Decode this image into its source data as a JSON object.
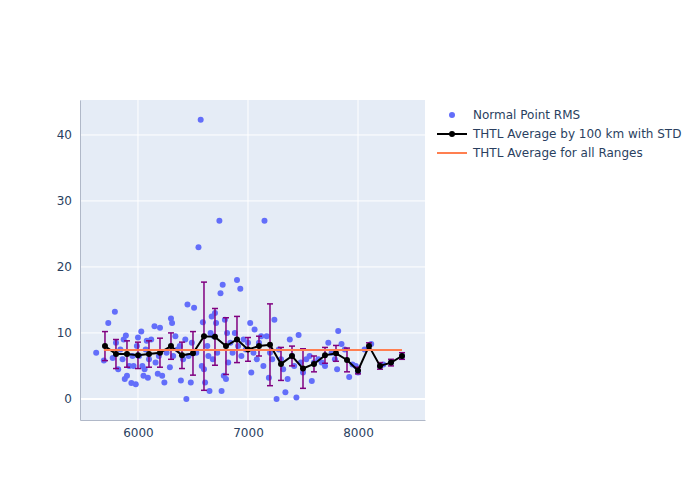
{
  "chart_data": {
    "type": "scatter",
    "xlim": [
      5473,
      8609
    ],
    "xticks": [
      6000,
      7000,
      8000
    ],
    "ylim": [
      -3.2,
      45.3
    ],
    "yticks": [
      0,
      10,
      20,
      30,
      40
    ],
    "grid": true,
    "legend": "right",
    "series": [
      {
        "name": "Normal Point RMS",
        "type": "scatter",
        "color": "#636efa",
        "marker": "circle",
        "x": [
          5620,
          5690,
          5730,
          5770,
          5790,
          5800,
          5820,
          5840,
          5860,
          5870,
          5880,
          5890,
          5900,
          5920,
          5940,
          5950,
          5960,
          5980,
          5990,
          6000,
          6010,
          6030,
          6040,
          6050,
          6060,
          6070,
          6080,
          6090,
          6100,
          6120,
          6150,
          6160,
          6180,
          6190,
          6200,
          6220,
          6240,
          6260,
          6290,
          6300,
          6310,
          6320,
          6340,
          6360,
          6380,
          6390,
          6410,
          6430,
          6440,
          6450,
          6460,
          6480,
          6490,
          6510,
          6530,
          6550,
          6570,
          6580,
          6590,
          6600,
          6610,
          6630,
          6640,
          6650,
          6660,
          6670,
          6680,
          6690,
          6700,
          6710,
          6720,
          6740,
          6750,
          6760,
          6770,
          6780,
          6790,
          6800,
          6810,
          6820,
          6840,
          6860,
          6880,
          6900,
          6910,
          6930,
          6940,
          6960,
          6980,
          7000,
          7020,
          7030,
          7050,
          7060,
          7080,
          7100,
          7120,
          7140,
          7150,
          7170,
          7190,
          7200,
          7220,
          7240,
          7260,
          7280,
          7300,
          7320,
          7340,
          7360,
          7380,
          7400,
          7420,
          7440,
          7460,
          7480,
          7500,
          7530,
          7560,
          7580,
          7600,
          7640,
          7670,
          7700,
          7730,
          7760,
          7790,
          7810,
          7820,
          7850,
          7880,
          7920,
          7950,
          7980,
          8000,
          8060,
          8120,
          8200,
          8230,
          8300,
          8400
        ],
        "values": [
          7.0,
          5.8,
          11.5,
          6.2,
          13.2,
          8.5,
          4.5,
          7.5,
          6.0,
          9.0,
          3.0,
          9.6,
          3.5,
          5.0,
          2.4,
          6.5,
          5.0,
          2.2,
          8.0,
          9.3,
          6.5,
          10.2,
          5.0,
          3.5,
          4.5,
          7.5,
          8.8,
          3.2,
          6.0,
          9.0,
          11.0,
          5.5,
          3.8,
          6.5,
          10.8,
          3.5,
          2.5,
          7.0,
          4.8,
          12.2,
          11.5,
          6.5,
          9.5,
          7.5,
          8.0,
          2.8,
          6.0,
          9.0,
          0.0,
          14.3,
          6.5,
          2.5,
          8.5,
          13.8,
          7.0,
          23.0,
          42.3,
          5.0,
          11.6,
          4.5,
          2.5,
          8.0,
          6.5,
          1.2,
          10.0,
          12.5,
          6.0,
          9.5,
          13.0,
          11.5,
          7.0,
          27.0,
          16.0,
          1.2,
          17.3,
          3.5,
          12.0,
          3.0,
          10.0,
          5.5,
          8.5,
          7.0,
          10.0,
          18.0,
          8.0,
          16.7,
          6.5,
          9.0,
          7.5,
          8.5,
          11.5,
          4.0,
          7.0,
          10.5,
          6.0,
          8.5,
          9.5,
          5.0,
          27.0,
          9.5,
          3.2,
          7.0,
          6.0,
          12.0,
          0.0,
          7.5,
          6.0,
          4.5,
          1.0,
          3.0,
          9.0,
          6.5,
          5.0,
          0.2,
          9.7,
          5.5,
          4.0,
          6.0,
          6.5,
          2.7,
          5.5,
          6.0,
          5.5,
          5.0,
          8.5,
          7.0,
          6.0,
          4.5,
          10.3,
          8.3,
          7.5,
          3.3,
          5.2,
          5.0,
          4.0,
          7.5,
          8.3,
          5.0,
          5.2,
          5.5,
          6.5
        ]
      },
      {
        "name": "THTL Average by 100 km with STD",
        "type": "line",
        "color": "#000000",
        "marker": "circle",
        "x": [
          5700,
          5800,
          5900,
          6000,
          6100,
          6200,
          6300,
          6400,
          6500,
          6600,
          6700,
          6800,
          6900,
          7000,
          7100,
          7200,
          7300,
          7400,
          7500,
          7600,
          7700,
          7800,
          7900,
          8000,
          8100,
          8200,
          8300,
          8400
        ],
        "values": [
          8.0,
          6.8,
          6.8,
          6.6,
          6.8,
          7.0,
          8.0,
          6.6,
          6.9,
          9.5,
          9.4,
          8.0,
          9.0,
          7.5,
          8.0,
          8.2,
          5.3,
          6.5,
          4.6,
          5.3,
          6.6,
          6.9,
          5.9,
          4.3,
          8.0,
          5.0,
          5.5,
          6.5
        ],
        "errors": [
          2.2,
          2.2,
          2.0,
          2.0,
          2.0,
          2.2,
          2.0,
          2.0,
          3.3,
          8.2,
          4.3,
          4.3,
          3.5,
          1.8,
          1.5,
          6.2,
          2.5,
          1.5,
          3.0,
          1.2,
          1.2,
          1.2,
          1.8,
          0.5,
          0.5,
          0.5,
          0.5,
          0.5
        ]
      },
      {
        "name": "THTL Average for all Ranges",
        "type": "line",
        "color": "#ff7f50",
        "marker": "none",
        "x": [
          5690,
          8400
        ],
        "values": [
          7.4,
          7.4
        ]
      }
    ]
  }
}
